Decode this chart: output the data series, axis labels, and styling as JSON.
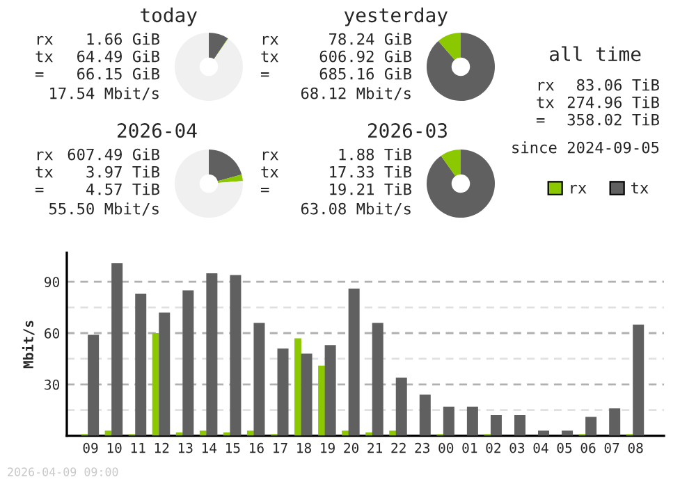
{
  "chart_data": [
    {
      "type": "donut",
      "title": "today",
      "categories": [
        null,
        null,
        null
      ],
      "values": [
        9.41,
        0.24,
        90.35
      ],
      "colors": [
        "#606060",
        "#8cc800",
        "#f0f0f0"
      ],
      "annotations": [
        "rx",
        "1.66 GiB",
        "tx",
        "64.49 GiB",
        "=",
        "66.15 GiB",
        "17.54 Mbit/s"
      ]
    },
    {
      "type": "donut",
      "title": "yesterday",
      "categories": [
        null,
        null
      ],
      "values": [
        88.58,
        11.42
      ],
      "colors": [
        "#606060",
        "#8cc800"
      ],
      "annotations": [
        "rx",
        "78.24 GiB",
        "tx",
        "606.92 GiB",
        "=",
        "685.16 GiB",
        "68.12 Mbit/s"
      ]
    },
    {
      "type": "other",
      "title": "all time",
      "annotations": [
        "rx",
        "83.06 TiB",
        "tx",
        "274.96 TiB",
        "=",
        "358.02 TiB",
        "since 2024-09-05"
      ]
    },
    {
      "type": "donut",
      "title": "2026-04",
      "categories": [
        null,
        null,
        null
      ],
      "values": [
        20.7,
        3.1,
        76.2
      ],
      "colors": [
        "#606060",
        "#8cc800",
        "#f0f0f0"
      ],
      "annotations": [
        "rx",
        "607.49 GiB",
        "tx",
        "3.97 TiB",
        "=",
        "4.57 TiB",
        "55.50 Mbit/s"
      ]
    },
    {
      "type": "donut",
      "title": "2026-03",
      "categories": [
        null,
        null
      ],
      "values": [
        90.2,
        9.8
      ],
      "colors": [
        "#606060",
        "#8cc800"
      ],
      "annotations": [
        "rx",
        "1.88 TiB",
        "tx",
        "17.33 TiB",
        "=",
        "19.21 TiB",
        "63.08 Mbit/s"
      ]
    },
    {
      "type": "bar",
      "categories": [
        "09",
        "10",
        "11",
        "12",
        "13",
        "14",
        "15",
        "16",
        "17",
        "18",
        "19",
        "20",
        "21",
        "22",
        "23",
        "00",
        "01",
        "02",
        "03",
        "04",
        "05",
        "06",
        "07",
        "08"
      ],
      "ylabel": "Mbit/s",
      "ylim": [
        0,
        107
      ],
      "yticks": [
        {
          "value": 15,
          "label": null
        },
        30,
        {
          "value": 45,
          "label": null
        },
        60,
        {
          "value": 75,
          "label": null
        },
        90
      ],
      "grid": "y",
      "legend": "top right",
      "annotations": [
        "2026-04-09 09:00"
      ],
      "series": [
        {
          "name": "rx",
          "color": "#8cc800",
          "values": [
            1,
            3,
            1,
            60,
            2,
            3,
            2,
            3,
            1,
            57,
            41,
            3,
            2,
            3,
            0,
            1,
            0,
            1,
            0,
            0,
            0,
            1,
            0,
            1
          ]
        },
        {
          "name": "tx",
          "color": "#606060",
          "values": [
            59,
            101,
            83,
            72,
            85,
            95,
            94,
            66,
            51,
            48,
            53,
            86,
            66,
            34,
            24,
            17,
            17,
            12,
            12,
            3,
            3,
            11,
            16,
            65
          ]
        }
      ]
    }
  ]
}
